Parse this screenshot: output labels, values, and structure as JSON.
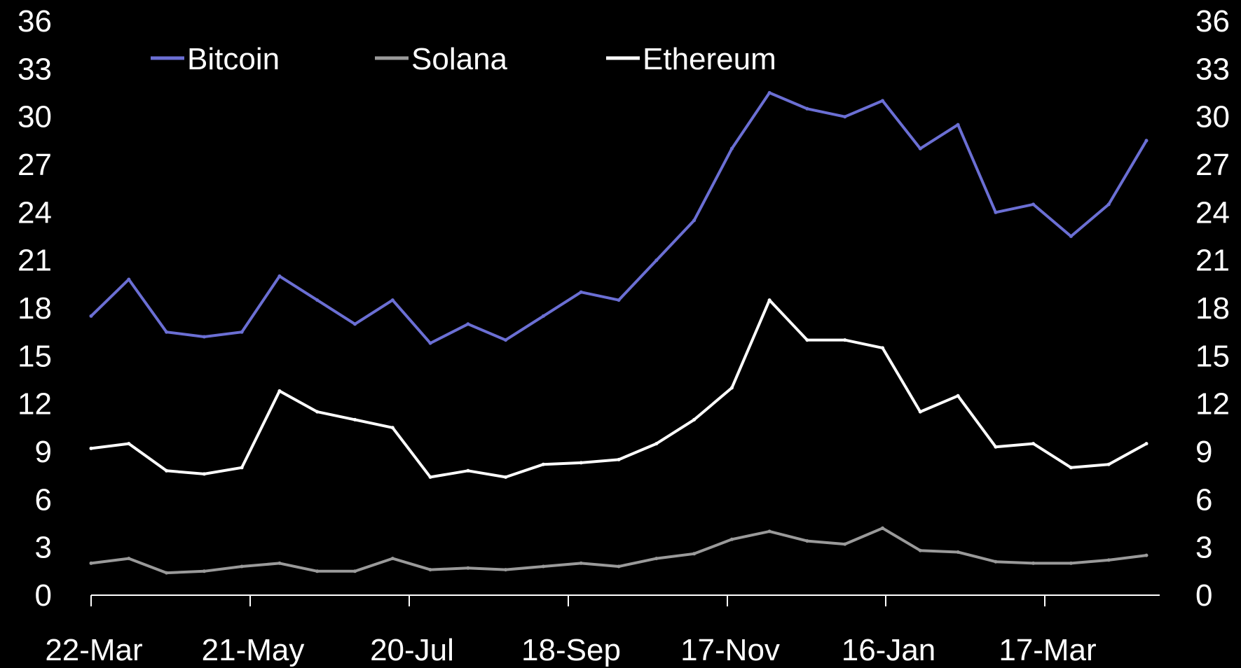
{
  "chart_data": {
    "type": "line",
    "title": "",
    "xlabel": "",
    "ylabel": "",
    "ylim": [
      0,
      36
    ],
    "y_ticks": [
      "0",
      "3",
      "6",
      "9",
      "12",
      "15",
      "18",
      "21",
      "24",
      "27",
      "30",
      "33",
      "36"
    ],
    "y_axis_right": true,
    "grid": false,
    "legend_position": "top-left",
    "background": "#000000",
    "x_ticks": [
      "22-Mar",
      "21-May",
      "20-Jul",
      "18-Sep",
      "17-Nov",
      "16-Jan",
      "17-Mar"
    ],
    "x": [
      "22-Mar",
      "6-Apr",
      "21-Apr",
      "6-May",
      "21-May",
      "5-Jun",
      "20-Jun",
      "5-Jul",
      "20-Jul",
      "4-Aug",
      "19-Aug",
      "3-Sep",
      "18-Sep",
      "3-Oct",
      "18-Oct",
      "2-Nov",
      "17-Nov",
      "2-Dec",
      "17-Dec",
      "1-Jan",
      "16-Jan",
      "31-Jan",
      "15-Feb",
      "1-Mar",
      "17-Mar",
      "1-Apr",
      "16-Apr",
      "30-Apr",
      "5-May"
    ],
    "series": [
      {
        "name": "Bitcoin",
        "color": "#6b6fd4",
        "values": [
          17.5,
          19.8,
          16.5,
          16.2,
          16.5,
          20.0,
          18.5,
          17.0,
          18.5,
          15.8,
          17.0,
          16.0,
          17.5,
          19.0,
          18.5,
          21.0,
          23.5,
          28.0,
          31.5,
          30.5,
          30.0,
          31.0,
          28.0,
          29.5,
          24.0,
          24.5,
          22.5,
          24.5,
          28.5
        ]
      },
      {
        "name": "Solana",
        "color": "#9a9a9a",
        "values": [
          2.0,
          2.3,
          1.4,
          1.5,
          1.8,
          2.0,
          1.5,
          1.5,
          2.3,
          1.6,
          1.7,
          1.6,
          1.8,
          2.0,
          1.8,
          2.3,
          2.6,
          3.5,
          4.0,
          3.4,
          3.2,
          4.2,
          2.8,
          2.7,
          2.1,
          2.0,
          2.0,
          2.2,
          2.5
        ]
      },
      {
        "name": "Ethereum",
        "color": "#ffffff",
        "values": [
          9.2,
          9.5,
          7.8,
          7.6,
          8.0,
          12.8,
          11.5,
          11.0,
          10.5,
          7.4,
          7.8,
          7.4,
          8.2,
          8.3,
          8.5,
          9.5,
          11.0,
          13.0,
          18.5,
          16.0,
          16.0,
          15.5,
          11.5,
          12.5,
          9.3,
          9.5,
          8.0,
          8.2,
          9.5
        ]
      }
    ]
  }
}
